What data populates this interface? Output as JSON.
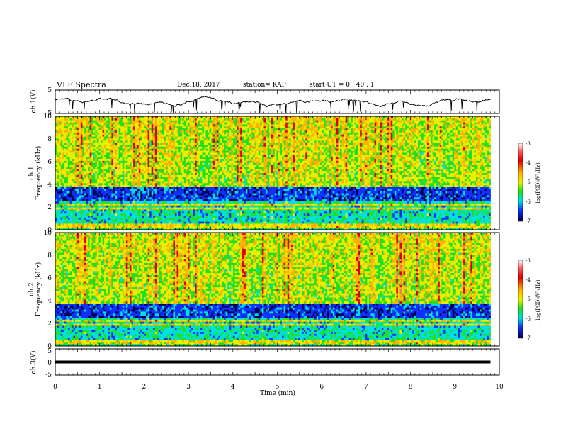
{
  "header": {
    "title": "VLF Spectra",
    "date": "Dec.18, 2017",
    "station": "station= KAP",
    "start_ut": "start  UT =   0 : 40 : 1"
  },
  "chart_data": [
    {
      "type": "line",
      "ylabel": "ch.1(V)",
      "xlim": [
        0,
        10
      ],
      "ylim": [
        -5,
        5
      ],
      "ytick_labels": [
        "5",
        "-5"
      ],
      "trace_duration_min": 9.8,
      "baseline_v": 0,
      "amplitude_v": 2
    },
    {
      "type": "heatmap",
      "ylabel_channel": "ch.1",
      "ylabel": "Frequency (kHz)",
      "xlim": [
        0,
        10
      ],
      "ylim": [
        0,
        10
      ],
      "ytick_labels": [
        "0",
        "2",
        "4",
        "6",
        "8",
        "10"
      ],
      "colorbar": {
        "label": "log(PSD)(V²/Hz)",
        "range": [
          -7,
          -3
        ],
        "tick_labels": [
          "-3",
          "-4",
          "-5",
          "-6",
          "-7"
        ]
      }
    },
    {
      "type": "heatmap",
      "ylabel_channel": "ch.2",
      "ylabel": "Frequency (kHz)",
      "xlim": [
        0,
        10
      ],
      "ylim": [
        0,
        10
      ],
      "ytick_labels": [
        "0",
        "2",
        "4",
        "6",
        "8",
        "10"
      ],
      "colorbar": {
        "label": "log(PSD)(V²/Hz)",
        "range": [
          -7,
          -3
        ],
        "tick_labels": [
          "-3",
          "-4",
          "-5",
          "-6",
          "-7"
        ]
      }
    },
    {
      "type": "line",
      "ylabel": "ch.3(V)",
      "xlim": [
        0,
        10
      ],
      "ylim": [
        -5,
        5
      ],
      "ytick_labels": [
        "5",
        "0",
        "-5"
      ],
      "constant_value_v": 0,
      "trace_duration_min": 9.8
    }
  ],
  "xaxis": {
    "label": "Time  (min)",
    "tick_labels": [
      "0",
      "1",
      "2",
      "3",
      "4",
      "5",
      "6",
      "7",
      "8",
      "9",
      "10"
    ]
  }
}
